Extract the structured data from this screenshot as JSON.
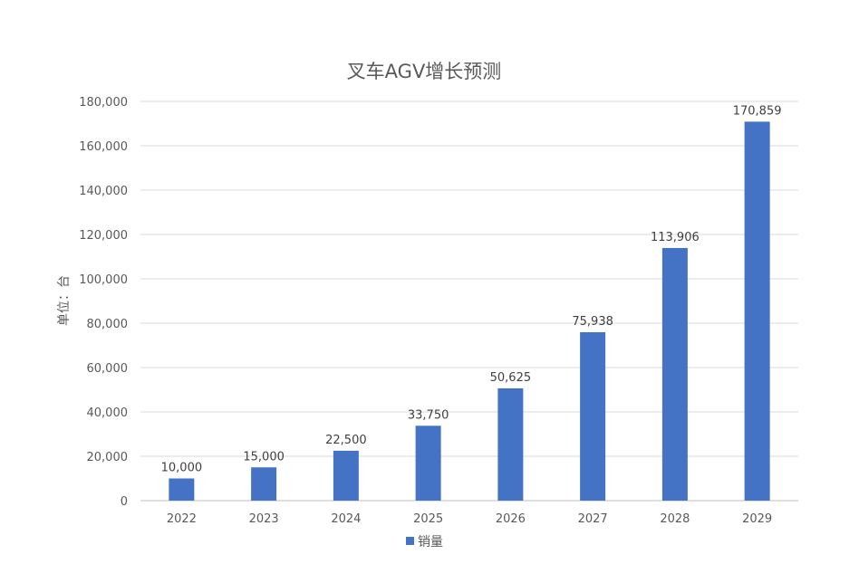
{
  "chart_data": {
    "type": "bar",
    "title": "叉车AGV增长预测",
    "ylabel": "单位：台",
    "xlabel": "",
    "categories": [
      "2022",
      "2023",
      "2024",
      "2025",
      "2026",
      "2027",
      "2028",
      "2029"
    ],
    "series": [
      {
        "name": "销量",
        "values": [
          10000,
          15000,
          22500,
          33750,
          50625,
          75938,
          113906,
          170859
        ],
        "color": "#4472C4"
      }
    ],
    "data_labels": [
      "10,000",
      "15,000",
      "22,500",
      "33,750",
      "50,625",
      "75,938",
      "113,906",
      "170,859"
    ],
    "ylim": [
      0,
      180000
    ],
    "yticks": [
      0,
      20000,
      40000,
      60000,
      80000,
      100000,
      120000,
      140000,
      160000,
      180000
    ],
    "ytick_labels": [
      "0",
      "20,000",
      "40,000",
      "60,000",
      "80,000",
      "100,000",
      "120,000",
      "140,000",
      "160,000",
      "180,000"
    ],
    "grid": true,
    "legend_position": "bottom",
    "colors": {
      "bar": "#4472C4",
      "grid": "#d9d9d9",
      "axis": "#bfbfbf",
      "text": "#595959"
    }
  }
}
